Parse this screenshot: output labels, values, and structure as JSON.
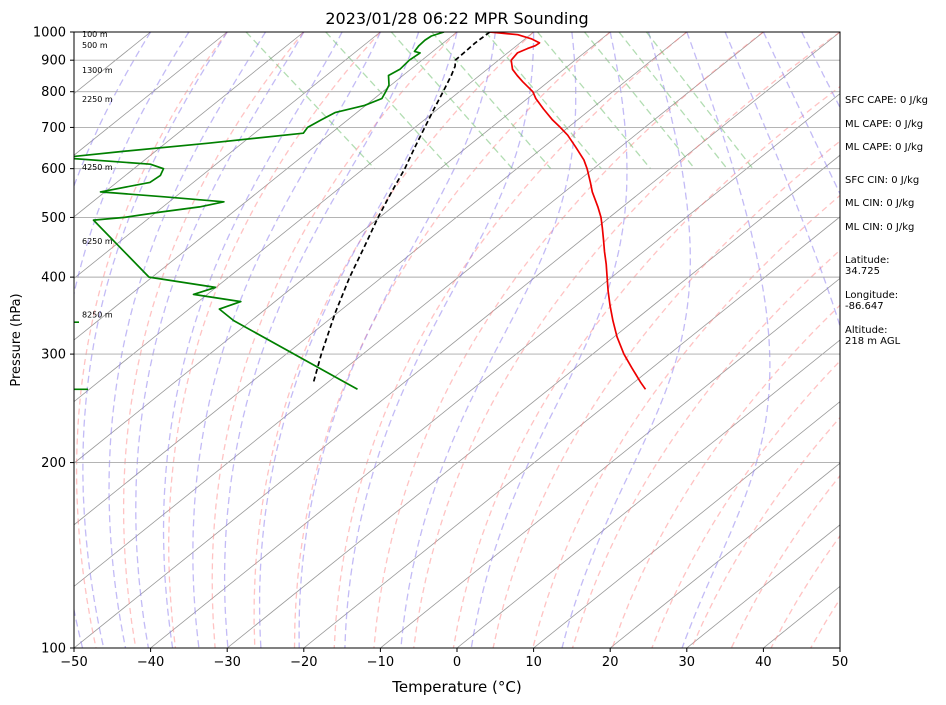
{
  "chart_data": {
    "type": "line",
    "title": "2023/01/28 06:22 MPR Sounding",
    "xlabel": "Temperature (°C)",
    "ylabel": "Pressure (hPa)",
    "xlim": [
      -50,
      50
    ],
    "ylim": [
      1000,
      100
    ],
    "y_scale": "log",
    "x_ticks": [
      -50,
      -40,
      -30,
      -20,
      -10,
      0,
      10,
      20,
      30,
      40,
      50
    ],
    "x_tick_labels": [
      "−50",
      "−40",
      "−30",
      "−20",
      "−10",
      "0",
      "10",
      "20",
      "30",
      "40",
      "50"
    ],
    "y_ticks": [
      1000,
      900,
      800,
      700,
      600,
      500,
      400,
      300,
      200,
      100
    ],
    "y_tick_labels": [
      "1000",
      "900",
      "800",
      "700",
      "600",
      "500",
      "400",
      "300",
      "200",
      "100"
    ],
    "grid": true,
    "skew_deg_per_decade": 100,
    "series": [
      {
        "role": "temperature",
        "color": "#ee0000",
        "points": [
          [
            1000,
            4.3
          ],
          [
            990,
            7.5
          ],
          [
            975,
            8.6
          ],
          [
            960,
            9.0
          ],
          [
            950,
            8.0
          ],
          [
            940,
            6.5
          ],
          [
            925,
            4.5
          ],
          [
            900,
            2.5
          ],
          [
            870,
            1.2
          ],
          [
            850,
            0.8
          ],
          [
            830,
            0.5
          ],
          [
            800,
            0.2
          ],
          [
            780,
            -0.5
          ],
          [
            750,
            -1.2
          ],
          [
            720,
            -1.8
          ],
          [
            700,
            -2.0
          ],
          [
            680,
            -2.3
          ],
          [
            650,
            -3.2
          ],
          [
            620,
            -4.2
          ],
          [
            600,
            -5.2
          ],
          [
            570,
            -7.0
          ],
          [
            550,
            -8.3
          ],
          [
            520,
            -10.0
          ],
          [
            500,
            -11.3
          ],
          [
            480,
            -12.9
          ],
          [
            460,
            -14.6
          ],
          [
            440,
            -16.4
          ],
          [
            420,
            -18.2
          ],
          [
            400,
            -20.2
          ],
          [
            380,
            -22.3
          ],
          [
            360,
            -24.4
          ],
          [
            340,
            -26.5
          ],
          [
            320,
            -28.6
          ],
          [
            300,
            -30.5
          ],
          [
            285,
            -31.7
          ],
          [
            270,
            -32.9
          ],
          [
            263,
            -33.4
          ]
        ]
      },
      {
        "role": "dewpoint",
        "color": "#008000",
        "points": [
          [
            1000,
            -1.7
          ],
          [
            985,
            -4.0
          ],
          [
            970,
            -5.5
          ],
          [
            950,
            -7.2
          ],
          [
            930,
            -8.7
          ],
          [
            925,
            -8.2
          ],
          [
            900,
            -10.8
          ],
          [
            870,
            -13.5
          ],
          [
            850,
            -16.0
          ],
          [
            820,
            -17.5
          ],
          [
            800,
            -19.0
          ],
          [
            780,
            -20.6
          ],
          [
            760,
            -24.0
          ],
          [
            740,
            -29.0
          ],
          [
            720,
            -32.0
          ],
          [
            700,
            -35.0
          ],
          [
            685,
            -36.5
          ],
          [
            660,
            -50.5
          ],
          [
            640,
            -63.0
          ],
          [
            625,
            -72.0
          ],
          [
            610,
            -61.5
          ],
          [
            600,
            -60.5
          ],
          [
            585,
            -62.0
          ],
          [
            570,
            -64.5
          ],
          [
            550,
            -72.5
          ],
          [
            540,
            -65.0
          ],
          [
            530,
            -58.0
          ],
          [
            520,
            -62.0
          ],
          [
            510,
            -68.0
          ],
          [
            500,
            -73.5
          ],
          [
            495,
            -78.0
          ],
          [
            400,
            -80.0
          ],
          [
            385,
            -73.0
          ],
          [
            375,
            -77.0
          ],
          [
            365,
            -72.0
          ],
          [
            355,
            -76.0
          ],
          [
            340,
            -76.0
          ],
          [
            263,
            -71.0
          ]
        ]
      },
      {
        "role": "parcel",
        "color": "#000000",
        "dashed": true,
        "points": [
          [
            1000,
            4.3
          ],
          [
            960,
            0.6
          ],
          [
            925,
            -2.5
          ],
          [
            900,
            -4.8
          ],
          [
            880,
            -5.8
          ],
          [
            850,
            -7.8
          ],
          [
            800,
            -11.5
          ],
          [
            750,
            -15.5
          ],
          [
            700,
            -19.7
          ],
          [
            650,
            -24.2
          ],
          [
            600,
            -29.0
          ],
          [
            550,
            -34.5
          ],
          [
            500,
            -40.4
          ],
          [
            450,
            -46.7
          ],
          [
            400,
            -53.8
          ],
          [
            350,
            -61.5
          ],
          [
            300,
            -70.0
          ],
          [
            270,
            -75.6
          ]
        ]
      }
    ],
    "height_labels": [
      {
        "text": "100 m",
        "p": 993
      },
      {
        "text": "500 m",
        "p": 952
      },
      {
        "text": "1300 m",
        "p": 868
      },
      {
        "text": "2250 m",
        "p": 778
      },
      {
        "text": "4250 m",
        "p": 604
      },
      {
        "text": "6250 m",
        "p": 458
      },
      {
        "text": "8250 m",
        "p": 348
      }
    ],
    "reference_lines": {
      "dry_adiabat_color": "#ff8888",
      "moist_adiabat_color": "#8877ee",
      "mixing_ratio_color": "#66bb66",
      "isotherm_color": "#999999"
    },
    "wind_barbs": [
      {
        "p": 263
      },
      {
        "p": 338
      }
    ]
  },
  "stats": {
    "sfc_cape": "SFC CAPE: 0 J/kg",
    "ml_cape": "ML CAPE: 0 J/kg",
    "ml_cape_2": "ML CAPE: 0 J/kg",
    "sfc_cin": "SFC CIN: 0 J/kg",
    "ml_cin": "ML CIN: 0 J/kg",
    "ml_cin_2": "ML CIN: 0 J/kg",
    "latitude_label": "Latitude:",
    "latitude_value": "34.725",
    "longitude_label": "Longitude:",
    "longitude_value": "-86.647",
    "altitude_label": "Altitude:",
    "altitude_value": "218 m AGL"
  }
}
